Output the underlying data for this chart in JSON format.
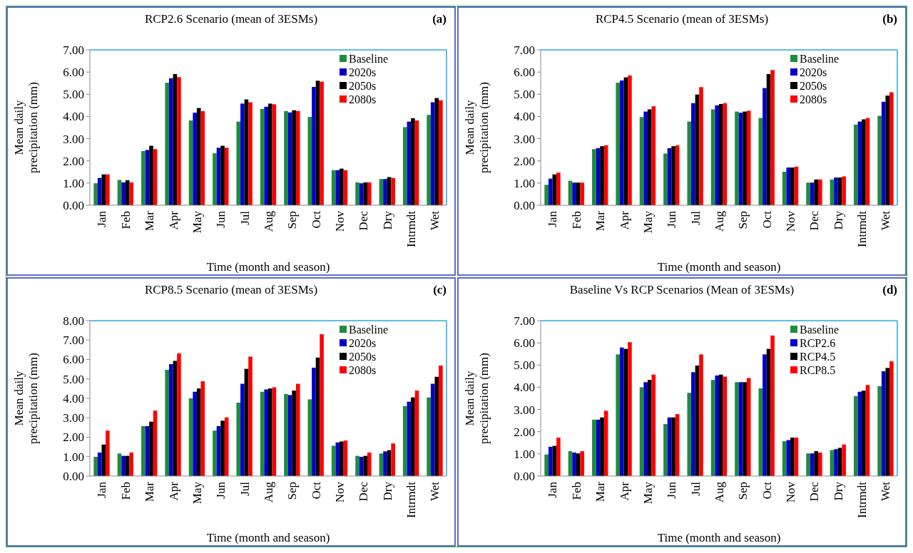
{
  "chart_data": [
    {
      "type": "bar",
      "title": "RCP2.6 Scenario  (mean of 3ESMs)",
      "annotations": [
        "(a)"
      ],
      "xlabel": "Time  (month and season)",
      "ylabel": "Mean daily precipitation  (mm)",
      "categories": [
        "Jan",
        "Feb",
        "Mar",
        "Apr",
        "May",
        "Jun",
        "Jul",
        "Aug",
        "Sep",
        "Oct",
        "Nov",
        "Dec",
        "Dry",
        "Intrmdt",
        "Wet"
      ],
      "ylim": [
        0,
        7
      ],
      "yticks": [
        {
          "value": 0,
          "label": "0.00"
        },
        {
          "value": 1,
          "label": "1.00"
        },
        {
          "value": 2,
          "label": "2.00"
        },
        {
          "value": 3,
          "label": "3.00"
        },
        {
          "value": 4,
          "label": "4.00"
        },
        {
          "value": 5,
          "label": "5.00"
        },
        {
          "value": 6,
          "label": "6.00"
        },
        {
          "value": 7,
          "label": "7.00"
        }
      ],
      "legend": "top right",
      "series": [
        {
          "name": "Baseline",
          "color": "#1e8c3c",
          "values": [
            0.99,
            1.14,
            2.44,
            5.52,
            3.82,
            2.34,
            3.77,
            4.34,
            4.24,
            3.98,
            1.58,
            1.03,
            1.18,
            3.52,
            4.07
          ]
        },
        {
          "name": "2020s",
          "color": "#0000cc",
          "values": [
            1.23,
            1.03,
            2.49,
            5.72,
            4.17,
            2.59,
            4.58,
            4.44,
            4.18,
            5.33,
            1.58,
            0.99,
            1.18,
            3.77,
            4.64
          ]
        },
        {
          "name": "2050s",
          "color": "#000000",
          "values": [
            1.39,
            1.13,
            2.68,
            5.91,
            4.38,
            2.68,
            4.77,
            4.58,
            4.28,
            5.61,
            1.65,
            1.03,
            1.27,
            3.92,
            4.83
          ]
        },
        {
          "name": "2080s",
          "color": "#ff0000",
          "values": [
            1.39,
            1.03,
            2.53,
            5.77,
            4.24,
            2.59,
            4.64,
            4.55,
            4.25,
            5.57,
            1.58,
            1.03,
            1.23,
            3.82,
            4.73
          ]
        }
      ]
    },
    {
      "type": "bar",
      "title": "RCP4.5 Scenario  (mean of 3ESMs)",
      "annotations": [
        "(b)"
      ],
      "xlabel": "Time  (month and season)",
      "ylabel": "Mean daily precipitation  (mm)",
      "categories": [
        "Jan",
        "Feb",
        "Mar",
        "Apr",
        "May",
        "Jun",
        "Jul",
        "Aug",
        "Sep",
        "Oct",
        "Nov",
        "Dec",
        "Dry",
        "Intrmdt",
        "Wet"
      ],
      "ylim": [
        0,
        7
      ],
      "yticks": [
        {
          "value": 0,
          "label": "0.00"
        },
        {
          "value": 1,
          "label": "1.00"
        },
        {
          "value": 2,
          "label": "2.00"
        },
        {
          "value": 3,
          "label": "3.00"
        },
        {
          "value": 4,
          "label": "4.00"
        },
        {
          "value": 5,
          "label": "5.00"
        },
        {
          "value": 6,
          "label": "6.00"
        },
        {
          "value": 7,
          "label": "7.00"
        }
      ],
      "legend": "top right",
      "series": [
        {
          "name": "Baseline",
          "color": "#1e8c3c",
          "values": [
            0.92,
            1.1,
            2.53,
            5.52,
            3.97,
            2.33,
            3.77,
            4.32,
            4.22,
            3.93,
            1.51,
            1.02,
            1.16,
            3.63,
            4.03
          ]
        },
        {
          "name": "2020s",
          "color": "#0000cc",
          "values": [
            1.2,
            1.02,
            2.57,
            5.62,
            4.22,
            2.57,
            4.6,
            4.5,
            4.17,
            5.28,
            1.7,
            1.02,
            1.25,
            3.77,
            4.66
          ]
        },
        {
          "name": "2050s",
          "color": "#000000",
          "values": [
            1.39,
            1.02,
            2.66,
            5.76,
            4.32,
            2.66,
            4.99,
            4.56,
            4.22,
            5.91,
            1.7,
            1.16,
            1.25,
            3.87,
            4.94
          ]
        },
        {
          "name": "2080s",
          "color": "#ff0000",
          "values": [
            1.47,
            1.02,
            2.7,
            5.85,
            4.46,
            2.7,
            5.32,
            4.6,
            4.26,
            6.09,
            1.74,
            1.16,
            1.3,
            3.93,
            5.09
          ]
        }
      ]
    },
    {
      "type": "bar",
      "title": "RCP8.5 Scenario  (mean of 3ESMs)",
      "annotations": [
        "(c)"
      ],
      "xlabel": "Time  (month and season)",
      "ylabel": "Mean daily precipitation  (mm)",
      "categories": [
        "Jan",
        "Feb",
        "Mar",
        "Apr",
        "May",
        "Jun",
        "Jul",
        "Aug",
        "Sep",
        "Oct",
        "Nov",
        "Dec",
        "Dry",
        "Intrmdt",
        "Wet"
      ],
      "ylim": [
        0,
        8
      ],
      "yticks": [
        {
          "value": 0,
          "label": "0.00"
        },
        {
          "value": 1,
          "label": "1.00"
        },
        {
          "value": 2,
          "label": "2.00"
        },
        {
          "value": 3,
          "label": "3.00"
        },
        {
          "value": 4,
          "label": "4.00"
        },
        {
          "value": 5,
          "label": "5.00"
        },
        {
          "value": 6,
          "label": "6.00"
        },
        {
          "value": 7,
          "label": "7.00"
        },
        {
          "value": 8,
          "label": "8.00"
        }
      ],
      "legend": "top right",
      "series": [
        {
          "name": "Baseline",
          "color": "#1e8c3c",
          "values": [
            0.99,
            1.16,
            2.57,
            5.47,
            4.0,
            2.34,
            3.78,
            4.34,
            4.22,
            3.95,
            1.56,
            1.04,
            1.16,
            3.6,
            4.05
          ]
        },
        {
          "name": "2020s",
          "color": "#0000cc",
          "values": [
            1.21,
            1.04,
            2.57,
            5.76,
            4.34,
            2.57,
            4.75,
            4.46,
            4.17,
            5.58,
            1.73,
            0.99,
            1.27,
            3.83,
            4.75
          ]
        },
        {
          "name": "2050s",
          "color": "#000000",
          "values": [
            1.62,
            1.04,
            2.8,
            5.93,
            4.51,
            2.85,
            5.52,
            4.51,
            4.4,
            6.1,
            1.78,
            1.04,
            1.33,
            4.05,
            5.11
          ]
        },
        {
          "name": "2080s",
          "color": "#ff0000",
          "values": [
            2.34,
            1.21,
            3.37,
            6.32,
            4.88,
            3.02,
            6.15,
            4.57,
            4.75,
            7.3,
            1.83,
            1.21,
            1.68,
            4.4,
            5.69
          ]
        }
      ]
    },
    {
      "type": "bar",
      "title": "Baseline  Vs RCP Scenarios  (Mean of 3ESMs)",
      "annotations": [
        "(d)"
      ],
      "xlabel": "Time  (month and season)",
      "ylabel": "Mean daily precipitation  (mm)",
      "categories": [
        "Jan",
        "Feb",
        "Mar",
        "Apr",
        "May",
        "Jun",
        "Jul",
        "Aug",
        "Sep",
        "Oct",
        "Nov",
        "Dec",
        "Dry",
        "Intrmdt",
        "Wet"
      ],
      "ylim": [
        0,
        7
      ],
      "yticks": [
        {
          "value": 0,
          "label": "0.00"
        },
        {
          "value": 1,
          "label": "1.00"
        },
        {
          "value": 2,
          "label": "2.00"
        },
        {
          "value": 3,
          "label": "3.00"
        },
        {
          "value": 4,
          "label": "4.00"
        },
        {
          "value": 5,
          "label": "5.00"
        },
        {
          "value": 6,
          "label": "6.00"
        },
        {
          "value": 7,
          "label": "7.00"
        }
      ],
      "legend": "top right",
      "series": [
        {
          "name": "Baseline",
          "color": "#1e8c3c",
          "values": [
            0.97,
            1.12,
            2.54,
            5.48,
            4.0,
            2.34,
            3.75,
            4.33,
            4.23,
            3.95,
            1.57,
            1.02,
            1.17,
            3.6,
            4.05
          ]
        },
        {
          "name": "RCP2.6",
          "color": "#0000cc",
          "values": [
            1.32,
            1.06,
            2.54,
            5.79,
            4.23,
            2.64,
            4.68,
            4.53,
            4.23,
            5.48,
            1.62,
            1.02,
            1.21,
            3.8,
            4.72
          ]
        },
        {
          "name": "RCP4.5",
          "color": "#000000",
          "values": [
            1.36,
            1.02,
            2.64,
            5.73,
            4.33,
            2.64,
            4.98,
            4.57,
            4.23,
            5.73,
            1.73,
            1.12,
            1.27,
            3.85,
            4.87
          ]
        },
        {
          "name": "RCP8.5",
          "color": "#ff0000",
          "values": [
            1.73,
            1.12,
            2.94,
            6.03,
            4.57,
            2.79,
            5.48,
            4.48,
            4.42,
            6.33,
            1.73,
            1.06,
            1.42,
            4.1,
            5.17
          ]
        }
      ]
    }
  ]
}
